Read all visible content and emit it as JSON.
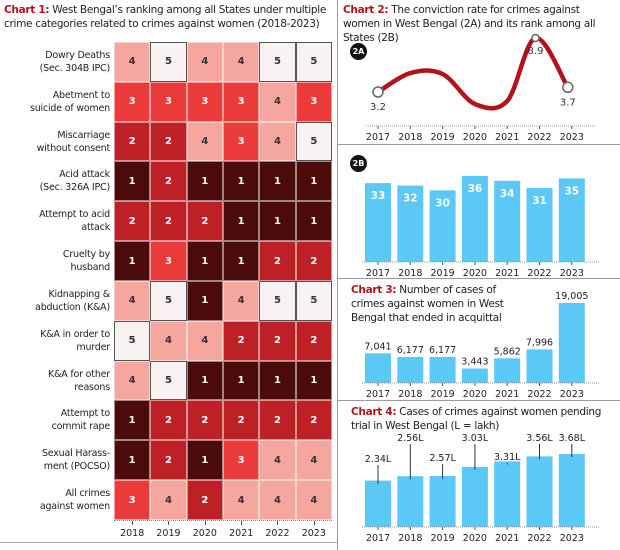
{
  "chart_data": [
    {
      "type": "heatmap",
      "title_lead": "Chart 1:",
      "title": "West Bengal’s ranking among all States under multiple crime categories related to crimes against women (2018-2023)",
      "x": [
        "2018",
        "2019",
        "2020",
        "2021",
        "2022",
        "2023"
      ],
      "rows": [
        {
          "label": "Dowry Deaths\n(Sec. 304B IPC)",
          "values": [
            4,
            5,
            4,
            4,
            5,
            5
          ]
        },
        {
          "label": "Abetment to\nsuicide of women",
          "values": [
            3,
            3,
            3,
            3,
            4,
            3
          ]
        },
        {
          "label": "Miscarriage\nwithout consent",
          "values": [
            2,
            2,
            4,
            3,
            4,
            5
          ]
        },
        {
          "label": "Acid attack\n(Sec. 326A IPC)",
          "values": [
            1,
            2,
            1,
            1,
            1,
            1
          ]
        },
        {
          "label": "Attempt to acid\nattack",
          "values": [
            2,
            2,
            2,
            1,
            1,
            1
          ]
        },
        {
          "label": "Cruelty by\nhusband",
          "values": [
            1,
            3,
            1,
            1,
            2,
            2
          ]
        },
        {
          "label": "Kidnapping &\nabduction (K&A)",
          "values": [
            4,
            5,
            1,
            4,
            5,
            5
          ]
        },
        {
          "label": "K&A in order to\nmurder",
          "values": [
            5,
            4,
            4,
            2,
            2,
            2
          ]
        },
        {
          "label": "K&A for other\nreasons",
          "values": [
            4,
            5,
            1,
            1,
            1,
            1
          ]
        },
        {
          "label": "Attempt to\ncommit rape",
          "values": [
            1,
            2,
            2,
            2,
            2,
            2
          ]
        },
        {
          "label": "Sexual Harass-\nment (POCSO)",
          "values": [
            1,
            2,
            1,
            3,
            4,
            4
          ]
        },
        {
          "label": "All crimes\nagainst women",
          "values": [
            3,
            4,
            2,
            4,
            4,
            4
          ]
        }
      ],
      "colors": {
        "1": "#4c0b0b",
        "2": "#bd2025",
        "3": "#ea3a3a",
        "4": "#f5a69f",
        "5": "#f8f3f2"
      }
    },
    {
      "type": "line",
      "id": "2A",
      "title_lead": "Chart 2:",
      "title": "The conviction rate for crimes against women in West Bengal (2A) and its rank among all States (2B)",
      "x": [
        "2017",
        "2018",
        "2019",
        "2020",
        "2021",
        "2022",
        "2023"
      ],
      "values": [
        3.2,
        5.2,
        5.1,
        2.0,
        2.5,
        8.9,
        3.7
      ],
      "labeled_points": {
        "2017": "3.2",
        "2022": "8.9",
        "2023": "3.7"
      },
      "ylim": [
        0,
        10
      ],
      "color": "#b3121b"
    },
    {
      "type": "bar",
      "id": "2B",
      "x": [
        "2017",
        "2018",
        "2019",
        "2020",
        "2021",
        "2022",
        "2023"
      ],
      "values": [
        33,
        32,
        30,
        36,
        34,
        31,
        35
      ],
      "ylim": [
        0,
        38
      ],
      "color": "#5bc8f5"
    },
    {
      "type": "bar",
      "title_lead": "Chart 3:",
      "title": "Number of cases of crimes against women in West Bengal that ended in acquittal",
      "x": [
        "2017",
        "2018",
        "2019",
        "2020",
        "2021",
        "2022",
        "2023"
      ],
      "values": [
        7041,
        6177,
        6177,
        3443,
        5862,
        7996,
        19005
      ],
      "labels": [
        "7,041",
        "6,177",
        "6,177",
        "3,443",
        "5,862",
        "7,996",
        "19,005"
      ],
      "ylim": [
        0,
        20000
      ],
      "color": "#5bc8f5"
    },
    {
      "type": "bar",
      "title_lead": "Chart 4:",
      "title": "Cases of crimes against women pending trial in West Bengal (L = lakh)",
      "x": [
        "2017",
        "2018",
        "2019",
        "2020",
        "2021",
        "2022",
        "2023"
      ],
      "values": [
        2.34,
        2.56,
        2.57,
        3.03,
        3.31,
        3.56,
        3.68
      ],
      "labels": [
        "2.34L",
        "2.56L",
        "2.57L",
        "3.03L",
        "3.31L",
        "3.56L",
        "3.68L"
      ],
      "ylim": [
        0,
        5
      ],
      "color": "#5bc8f5"
    }
  ]
}
